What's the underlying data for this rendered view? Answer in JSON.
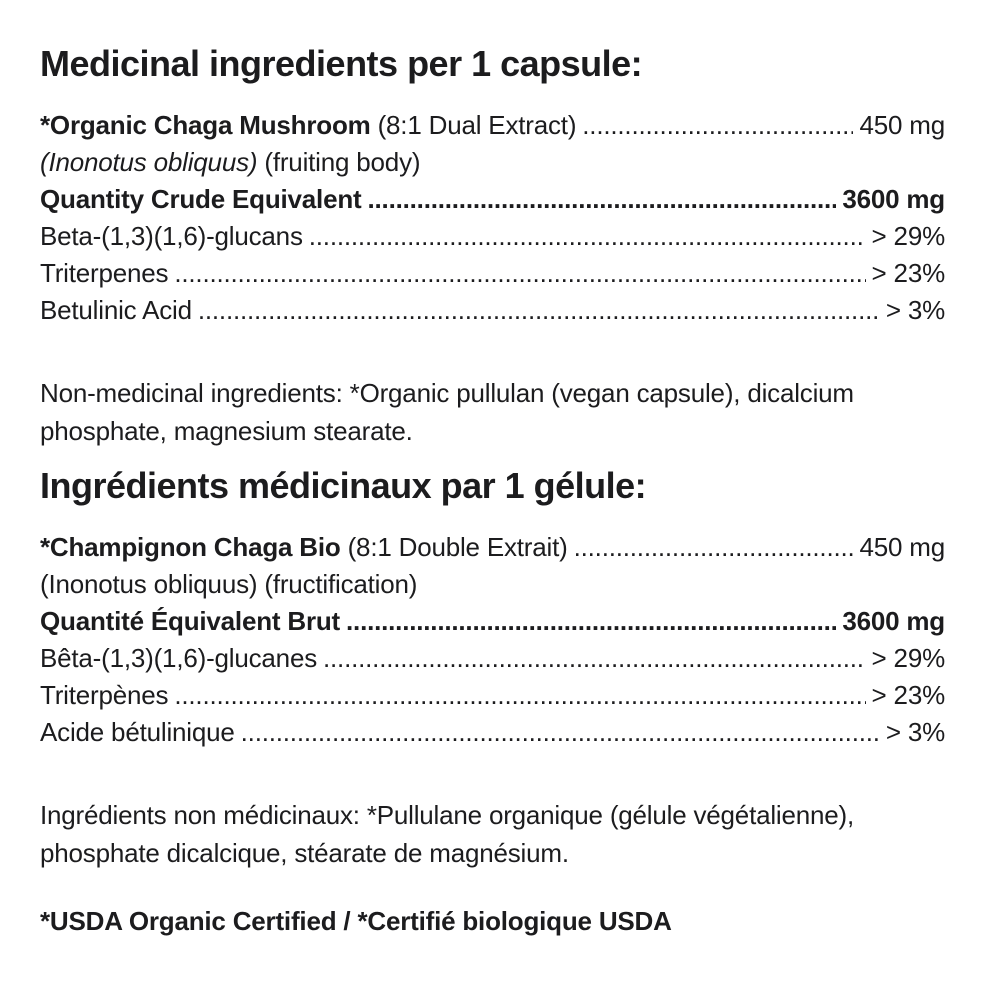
{
  "label": {
    "background": "#ffffff",
    "text_color": "#1c1c1e"
  },
  "en": {
    "title": "Medicinal ingredients per 1 capsule:",
    "rows": [
      {
        "parts": [
          {
            "text": "*Organic Chaga Mushroom",
            "style": "bold"
          },
          {
            "text": " (8:1 Dual Extract)",
            "style": "regular"
          }
        ],
        "leader": true,
        "value": "450 mg",
        "weight": "regular"
      },
      {
        "parts": [
          {
            "text": "(Inonotus obliquus)",
            "style": "italic"
          },
          {
            "text": " (fruiting body)",
            "style": "regular"
          }
        ],
        "leader": false,
        "value": "",
        "weight": "regular"
      },
      {
        "parts": [
          {
            "text": "Quantity Crude Equivalent",
            "style": "bold"
          }
        ],
        "leader": true,
        "value": "3600 mg",
        "weight": "bold"
      },
      {
        "parts": [
          {
            "text": "Beta-(1,3)(1,6)-glucans",
            "style": "regular"
          }
        ],
        "leader": true,
        "value": "> 29%",
        "weight": "regular"
      },
      {
        "parts": [
          {
            "text": "Triterpenes",
            "style": "regular"
          }
        ],
        "leader": true,
        "value": "> 23%",
        "weight": "regular"
      },
      {
        "parts": [
          {
            "text": "Betulinic Acid",
            "style": "regular"
          }
        ],
        "leader": true,
        "value": "> 3%",
        "weight": "regular"
      }
    ],
    "non_medicinal": "Non-medicinal ingredients: *Organic pullulan (vegan capsule), dicalcium phosphate, magnesium stearate."
  },
  "fr": {
    "title": "Ingrédients médicinaux par 1 gélule:",
    "rows": [
      {
        "parts": [
          {
            "text": "*Champignon Chaga Bio",
            "style": "bold"
          },
          {
            "text": " (8:1 Double Extrait)",
            "style": "regular"
          }
        ],
        "leader": true,
        "value": "450 mg",
        "weight": "regular"
      },
      {
        "parts": [
          {
            "text": "(Inonotus obliquus) (fructification)",
            "style": "regular"
          }
        ],
        "leader": false,
        "value": "",
        "weight": "regular"
      },
      {
        "parts": [
          {
            "text": "Quantité Équivalent Brut",
            "style": "bold"
          }
        ],
        "leader": true,
        "value": "3600 mg",
        "weight": "bold"
      },
      {
        "parts": [
          {
            "text": "Bêta-(1,3)(1,6)-glucanes",
            "style": "regular"
          }
        ],
        "leader": true,
        "value": "> 29%",
        "weight": "regular"
      },
      {
        "parts": [
          {
            "text": "Triterpènes",
            "style": "regular"
          }
        ],
        "leader": true,
        "value": "> 23%",
        "weight": "regular"
      },
      {
        "parts": [
          {
            "text": "Acide bétulinique",
            "style": "regular"
          }
        ],
        "leader": true,
        "value": "> 3%",
        "weight": "regular"
      }
    ],
    "non_medicinal": "Ingrédients non médicinaux: *Pullulane organique (gélule végétalienne), phosphate dicalcique, stéarate de magnésium."
  },
  "footer": {
    "certification": "*USDA Organic Certified / *Certifié biologique USDA"
  }
}
